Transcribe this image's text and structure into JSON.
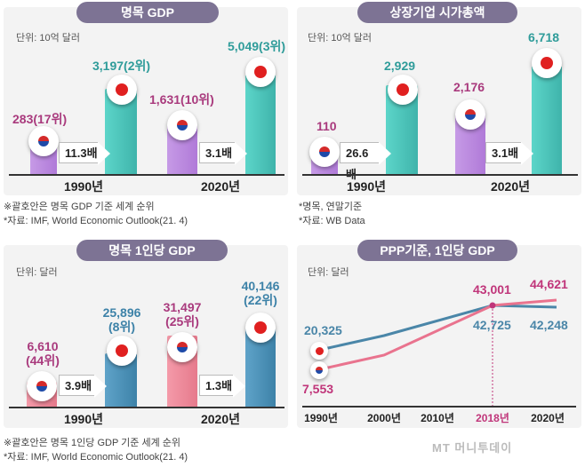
{
  "colors": {
    "korea": "#a93a7d",
    "japan": "#2f9c9a",
    "pill": "#7d7394",
    "pppKorea": "#e9738e",
    "pppJapan": "#4a86a8"
  },
  "panels": {
    "gdp": {
      "title": "명목 GDP",
      "unit": "단위: 10억 달러",
      "categories": [
        "1990년",
        "2020년"
      ],
      "kr_labels": [
        "283(17위)",
        "1,631(10위)"
      ],
      "jp_labels": [
        "3,197(2위)",
        "5,049(3위)"
      ],
      "ratios": [
        "11.3배",
        "3.1배"
      ]
    },
    "market_cap": {
      "title": "상장기업 시가총액",
      "unit": "단위: 10억 달러",
      "categories": [
        "1990년",
        "2020년"
      ],
      "kr_labels": [
        "110",
        "2,176"
      ],
      "jp_labels": [
        "2,929",
        "6,718"
      ],
      "ratios": [
        "26.6배",
        "3.1배"
      ]
    },
    "gdp_pc": {
      "title": "명목 1인당 GDP",
      "unit": "단위: 달러",
      "categories": [
        "1990년",
        "2020년"
      ],
      "kr_labels": [
        "6,610 (44위)",
        "31,497 (25위)"
      ],
      "jp_labels": [
        "25,896 (8위)",
        "40,146 (22위)"
      ],
      "ratios": [
        "3.9배",
        "1.3배"
      ]
    },
    "ppp": {
      "title": "PPP기준, 1인당 GDP",
      "unit": "단위: 달러",
      "ticks": [
        "1990년",
        "2000년",
        "2010년",
        "2018년",
        "2020년"
      ],
      "labels": {
        "jp1990": "20,325",
        "kr1990": "7,553",
        "kr2018": "43,001",
        "jp2018": "42,725",
        "kr2020": "44,621",
        "jp2020": "42,248"
      }
    }
  },
  "notes": {
    "top_left_1": "※괄호안은 명목 GDP 기준 세계 순위",
    "top_left_2": "*자료: IMF, World Economic Outlook(21. 4)",
    "top_right_1": "*명목, 연말기준",
    "top_right_2": "*자료: WB Data",
    "bottom_1": "※괄호안은 명목 1인당 GDP 기준 세계 순위",
    "bottom_2": "*자료: IMF, World Economic Outlook(21. 4)"
  },
  "logo": "MT 머니투데이",
  "chart_data": [
    {
      "type": "bar",
      "title": "명목 GDP",
      "ylabel": "10억 달러",
      "categories": [
        "1990년",
        "2020년"
      ],
      "series": [
        {
          "name": "한국",
          "values": [
            283,
            1631
          ],
          "ranks": [
            17,
            10
          ]
        },
        {
          "name": "일본",
          "values": [
            3197,
            5049
          ],
          "ranks": [
            2,
            3
          ]
        }
      ],
      "ratios": [
        11.3,
        3.1
      ]
    },
    {
      "type": "bar",
      "title": "상장기업 시가총액",
      "ylabel": "10억 달러",
      "categories": [
        "1990년",
        "2020년"
      ],
      "series": [
        {
          "name": "한국",
          "values": [
            110,
            2176
          ]
        },
        {
          "name": "일본",
          "values": [
            2929,
            6718
          ]
        }
      ],
      "ratios": [
        26.6,
        3.1
      ]
    },
    {
      "type": "bar",
      "title": "명목 1인당 GDP",
      "ylabel": "달러",
      "categories": [
        "1990년",
        "2020년"
      ],
      "series": [
        {
          "name": "한국",
          "values": [
            6610,
            31497
          ],
          "ranks": [
            44,
            25
          ]
        },
        {
          "name": "일본",
          "values": [
            25896,
            40146
          ],
          "ranks": [
            8,
            22
          ]
        }
      ],
      "ratios": [
        3.9,
        1.3
      ]
    },
    {
      "type": "line",
      "title": "PPP기준, 1인당 GDP",
      "ylabel": "달러",
      "x": [
        1990,
        2000,
        2010,
        2018,
        2020
      ],
      "series": [
        {
          "name": "한국",
          "values": [
            7553,
            null,
            null,
            43001,
            44621
          ]
        },
        {
          "name": "일본",
          "values": [
            20325,
            null,
            null,
            42725,
            42248
          ]
        }
      ],
      "highlight": "2018년",
      "ylim": [
        0,
        50000
      ]
    }
  ]
}
